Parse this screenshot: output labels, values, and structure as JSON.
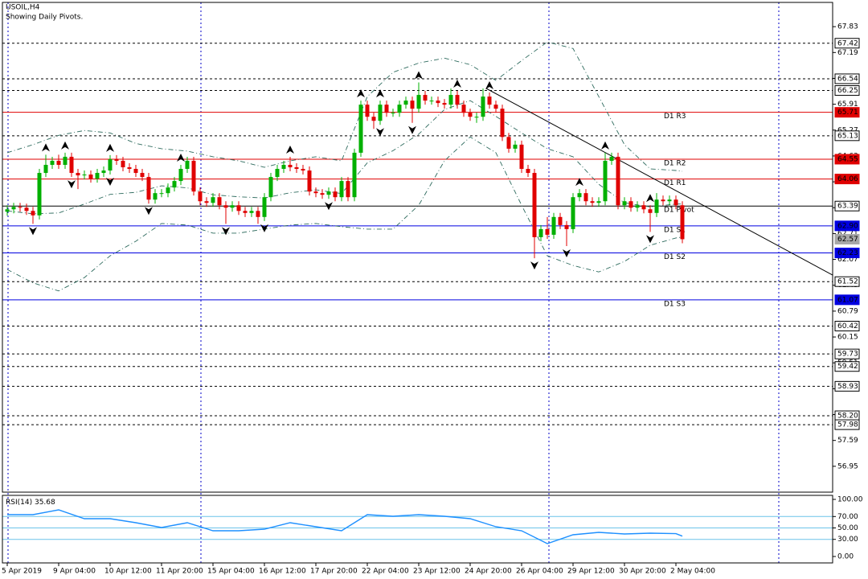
{
  "chart_data": {
    "type": "candlestick",
    "title": "USOIL,H4",
    "subtitle": "Showing Daily Pivots.",
    "categories": [
      "5 Apr 2019",
      null,
      null,
      null,
      null,
      null,
      null,
      null,
      "9 Apr 04:00",
      null,
      null,
      null,
      null,
      null,
      null,
      null,
      "10 Apr 12:00",
      null,
      null,
      null,
      null,
      null,
      null,
      null,
      "11 Apr 20:00",
      null,
      null,
      null,
      null,
      null,
      null,
      null,
      "15 Apr 04:00",
      null,
      null,
      null,
      null,
      null,
      null,
      null,
      "16 Apr 12:00",
      null,
      null,
      null,
      null,
      null,
      null,
      null,
      "17 Apr 20:00",
      null,
      null,
      null,
      null,
      null,
      null,
      null,
      "22 Apr 04:00",
      null,
      null,
      null,
      null,
      null,
      null,
      null,
      "23 Apr 12:00",
      null,
      null,
      null,
      null,
      null,
      null,
      null,
      "24 Apr 20:00",
      null,
      null,
      null,
      null,
      null,
      null,
      null,
      "26 Apr 04:00",
      null,
      null,
      null,
      null,
      null,
      null,
      null,
      "29 Apr 12:00",
      null,
      null,
      null,
      null,
      null,
      null,
      null,
      "30 Apr 20:00",
      null,
      null,
      null,
      null,
      null,
      null,
      null,
      "2 May 04:00",
      null
    ],
    "open": [
      63.25,
      63.31,
      63.37,
      63.35,
      63.27,
      63.16,
      64.21,
      64.41,
      64.51,
      64.41,
      64.61,
      64.21,
      64.15,
      64.17,
      64.07,
      64.21,
      64.27,
      64.55,
      64.51,
      64.35,
      64.31,
      64.21,
      64.11,
      63.55,
      63.71,
      63.71,
      63.85,
      64.01,
      64.31,
      64.51,
      63.75,
      63.51,
      63.47,
      63.61,
      63.41,
      63.35,
      63.41,
      63.27,
      63.22,
      63.27,
      63.12,
      63.61,
      64.11,
      64.31,
      64.41,
      64.35,
      64.31,
      64.27,
      63.75,
      63.71,
      63.67,
      63.75,
      63.61,
      64.01,
      63.61,
      64.71,
      65.9,
      65.6,
      65.5,
      65.9,
      65.7,
      65.7,
      65.9,
      66.0,
      65.8,
      66.14,
      66.0,
      66.0,
      65.94,
      65.9,
      66.14,
      65.9,
      65.7,
      65.6,
      65.6,
      66.1,
      65.9,
      65.8,
      65.1,
      64.81,
      64.91,
      64.31,
      64.21,
      62.62,
      62.82,
      62.68,
      63.12,
      62.92,
      62.82,
      63.61,
      63.71,
      63.51,
      63.47,
      63.51,
      64.51,
      64.61,
      63.41,
      63.51,
      63.35,
      63.41,
      63.31,
      63.22,
      63.55,
      63.51,
      63.55,
      63.41
    ],
    "high": [
      63.41,
      63.47,
      63.47,
      63.45,
      63.37,
      64.31,
      64.66,
      64.61,
      64.66,
      64.71,
      64.71,
      64.31,
      64.27,
      64.27,
      64.31,
      64.37,
      64.65,
      64.65,
      64.61,
      64.45,
      64.41,
      64.31,
      64.21,
      63.81,
      63.81,
      63.95,
      64.11,
      64.41,
      64.61,
      64.61,
      63.85,
      63.61,
      63.71,
      63.71,
      63.51,
      63.51,
      63.51,
      63.37,
      63.37,
      63.37,
      63.71,
      64.21,
      64.41,
      64.51,
      64.61,
      64.45,
      64.41,
      64.37,
      63.85,
      63.81,
      63.85,
      63.85,
      64.11,
      64.11,
      64.81,
      66.0,
      66.0,
      65.7,
      66.0,
      66.0,
      65.8,
      66.0,
      66.1,
      66.1,
      66.45,
      66.24,
      66.1,
      66.1,
      66.04,
      66.3,
      66.24,
      66.0,
      65.8,
      65.7,
      66.3,
      66.2,
      66.0,
      65.9,
      65.2,
      65.01,
      65.01,
      64.41,
      64.31,
      62.92,
      63.12,
      63.22,
      63.22,
      63.02,
      63.71,
      63.81,
      63.81,
      63.61,
      63.61,
      64.71,
      64.71,
      64.71,
      63.61,
      63.61,
      63.51,
      63.51,
      63.41,
      63.71,
      63.65,
      63.65,
      63.65,
      63.51
    ],
    "low": [
      63.15,
      63.21,
      63.25,
      63.17,
      62.95,
      63.06,
      64.11,
      64.31,
      64.31,
      64.31,
      64.11,
      63.81,
      64.05,
      63.97,
      63.97,
      64.11,
      64.17,
      64.41,
      64.25,
      64.21,
      64.11,
      64.01,
      63.45,
      63.45,
      63.61,
      63.61,
      63.75,
      63.91,
      64.21,
      63.65,
      63.41,
      63.37,
      63.37,
      63.31,
      62.95,
      63.25,
      63.17,
      63.12,
      63.12,
      62.95,
      63.02,
      63.51,
      64.01,
      64.21,
      64.25,
      64.21,
      64.17,
      63.65,
      63.61,
      63.57,
      63.57,
      63.51,
      63.51,
      63.51,
      63.51,
      64.61,
      65.5,
      65.3,
      65.4,
      65.6,
      65.6,
      65.6,
      65.8,
      65.45,
      65.7,
      65.9,
      65.9,
      65.84,
      65.8,
      65.8,
      65.8,
      65.6,
      65.5,
      65.45,
      65.5,
      65.8,
      65.7,
      65.0,
      64.71,
      64.71,
      64.21,
      64.11,
      62.1,
      62.52,
      62.58,
      62.58,
      62.82,
      62.4,
      62.72,
      63.51,
      63.41,
      63.37,
      63.37,
      63.41,
      64.41,
      63.31,
      63.31,
      63.25,
      63.25,
      63.21,
      62.75,
      63.12,
      63.41,
      63.41,
      63.31,
      62.47
    ],
    "close": [
      63.31,
      63.37,
      63.35,
      63.27,
      63.16,
      64.21,
      64.41,
      64.51,
      64.41,
      64.61,
      64.21,
      64.15,
      64.17,
      64.07,
      64.21,
      64.27,
      64.55,
      64.51,
      64.35,
      64.31,
      64.21,
      64.11,
      63.55,
      63.71,
      63.71,
      63.85,
      64.01,
      64.31,
      64.51,
      63.75,
      63.51,
      63.47,
      63.61,
      63.41,
      63.35,
      63.41,
      63.27,
      63.22,
      63.27,
      63.12,
      63.61,
      64.11,
      64.31,
      64.41,
      64.35,
      64.31,
      64.27,
      63.75,
      63.71,
      63.67,
      63.75,
      63.61,
      64.01,
      63.61,
      64.71,
      65.9,
      65.6,
      65.5,
      65.9,
      65.7,
      65.7,
      65.9,
      66.0,
      65.8,
      66.14,
      66.0,
      66.0,
      65.94,
      65.9,
      66.14,
      65.9,
      65.7,
      65.6,
      65.6,
      66.1,
      65.9,
      65.8,
      65.1,
      64.81,
      64.91,
      64.31,
      64.21,
      62.62,
      62.82,
      62.68,
      63.12,
      62.92,
      62.82,
      63.61,
      63.71,
      63.51,
      63.47,
      63.51,
      64.51,
      64.61,
      63.41,
      63.51,
      63.35,
      63.41,
      63.31,
      63.22,
      63.55,
      63.51,
      63.55,
      63.41,
      62.57
    ],
    "up_color": "#00b000",
    "down_color": "#e00000",
    "ylim": [
      56.31,
      68.43
    ],
    "yticks": [
      67.83,
      67.19,
      66.55,
      65.91,
      65.27,
      64.63,
      63.99,
      63.35,
      62.71,
      62.07,
      61.43,
      60.79,
      60.15,
      59.51,
      58.87,
      58.23,
      57.59,
      56.95
    ],
    "levels": [
      67.42,
      66.54,
      66.25,
      65.13,
      61.52,
      60.42,
      59.73,
      59.42,
      58.93,
      {
        "value": 58.2,
        "label": "58.20"
      },
      57.98
    ],
    "pivots": [
      {
        "name": "D1 R3",
        "value": 65.71,
        "color": "#e00000"
      },
      {
        "name": "D1 R2",
        "value": 64.55,
        "color": "#e00000"
      },
      {
        "name": "D1 R1",
        "value": 64.06,
        "color": "#e00000"
      },
      {
        "name": "D1 Pivot",
        "value": 63.39,
        "color": "#000000"
      },
      {
        "name": "D1 S1",
        "value": {
          "value": 62.9,
          "label": "62.90"
        },
        "color": "#0000e0"
      },
      {
        "name": "D1 S2",
        "value": 62.23,
        "color": "#0000e0"
      },
      {
        "name": "D1 S3",
        "value": 61.07,
        "color": "#0000e0"
      }
    ],
    "last_price": 62.57,
    "bands": {
      "color": "#2e6b5e",
      "x": [
        0,
        4,
        8,
        12,
        16,
        20,
        24,
        28,
        32,
        36,
        40,
        44,
        48,
        52,
        56,
        60,
        64,
        68,
        72,
        76,
        80,
        84,
        88,
        92,
        96,
        100,
        104,
        105
      ],
      "upper": [
        64.71,
        64.91,
        65.14,
        65.26,
        65.2,
        64.94,
        64.81,
        64.75,
        64.61,
        64.51,
        64.35,
        64.51,
        64.61,
        64.51,
        66.1,
        66.7,
        66.93,
        67.05,
        66.89,
        66.5,
        66.99,
        67.45,
        67.29,
        66.1,
        64.91,
        64.31,
        64.27,
        64.25
      ],
      "middle": [
        63.27,
        63.2,
        63.22,
        63.44,
        63.68,
        63.73,
        63.89,
        63.84,
        63.67,
        63.62,
        63.59,
        63.72,
        63.79,
        63.7,
        64.46,
        64.76,
        65.17,
        65.78,
        66.0,
        65.61,
        65.2,
        64.81,
        64.61,
        63.93,
        63.47,
        63.37,
        63.44,
        63.44
      ],
      "lower": [
        61.82,
        61.49,
        61.29,
        61.62,
        62.16,
        62.52,
        62.96,
        62.92,
        62.72,
        62.72,
        62.82,
        62.92,
        62.96,
        62.88,
        62.82,
        62.82,
        63.41,
        64.51,
        65.1,
        64.71,
        63.41,
        62.16,
        61.92,
        61.76,
        62.02,
        62.42,
        62.6,
        62.62
      ]
    },
    "fractals": {
      "up": [
        6,
        9,
        16,
        27,
        44,
        55,
        58,
        64,
        70,
        75,
        89,
        93,
        100
      ],
      "down": [
        4,
        10,
        16,
        22,
        34,
        40,
        50,
        58,
        63,
        82,
        87,
        100
      ]
    },
    "trendline": {
      "x": [
        74.5,
        128.4
      ],
      "y": [
        66.3,
        61.68
      ]
    },
    "indicator": {
      "name": "RSI(14)",
      "color": "#1e90ff",
      "x": [
        0,
        4,
        8,
        12,
        16,
        20,
        24,
        28,
        32,
        36,
        40,
        44,
        48,
        52,
        56,
        60,
        64,
        68,
        72,
        76,
        80,
        84,
        88,
        92,
        96,
        100,
        104,
        105
      ],
      "values": [
        73.2,
        73.2,
        81.7,
        66.2,
        66.2,
        59.2,
        50.7,
        59.2,
        45.1,
        45.1,
        47.9,
        59.2,
        52.1,
        45.1,
        73.2,
        70.4,
        73.2,
        70.4,
        66.2,
        52.1,
        45.1,
        22.5,
        38.0,
        42.3,
        39.4,
        40.8,
        40.0,
        35.68
      ],
      "ylim": [
        0,
        100
      ],
      "yticks": [
        {
          "value": 100,
          "label": "100.00"
        },
        {
          "value": 70,
          "label": "70.00"
        },
        {
          "value": 50,
          "label": "50.00"
        },
        {
          "value": 30,
          "label": "30.00"
        },
        {
          "value": 0,
          "label": "0.00"
        }
      ],
      "levels": [
        30,
        50,
        70
      ],
      "level_color": "#6cc4ea"
    }
  }
}
